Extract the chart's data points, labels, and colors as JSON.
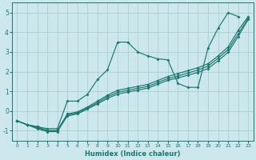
{
  "title": "",
  "xlabel": "Humidex (Indice chaleur)",
  "bg_color": "#cce8ec",
  "grid_color": "#aad0d4",
  "line_color": "#1a7870",
  "xlim": [
    -0.5,
    23.5
  ],
  "ylim": [
    -1.5,
    5.5
  ],
  "xticks": [
    0,
    1,
    2,
    3,
    4,
    5,
    6,
    7,
    8,
    9,
    10,
    11,
    12,
    13,
    14,
    15,
    16,
    17,
    18,
    19,
    20,
    21,
    22,
    23
  ],
  "yticks": [
    -1,
    0,
    1,
    2,
    3,
    4,
    5
  ],
  "line1_x": [
    0,
    1,
    2,
    3,
    4,
    5,
    6,
    7,
    8,
    9,
    10,
    11,
    12,
    13,
    14,
    15,
    16,
    17,
    18,
    19,
    20,
    21,
    22
  ],
  "line1_y": [
    -0.5,
    -0.7,
    -0.8,
    -0.9,
    -0.9,
    0.5,
    0.5,
    0.85,
    1.6,
    2.1,
    3.5,
    3.5,
    3.0,
    2.8,
    2.65,
    2.6,
    1.4,
    1.2,
    1.2,
    3.2,
    4.2,
    5.0,
    4.8
  ],
  "line2_x": [
    0,
    1,
    2,
    3,
    4,
    5,
    6,
    7,
    8,
    9,
    10,
    11,
    12,
    13,
    14,
    15,
    16,
    17,
    18,
    19,
    20,
    21,
    22,
    23
  ],
  "line2_y": [
    -0.5,
    -0.7,
    -0.8,
    -1.0,
    -1.0,
    -0.15,
    -0.05,
    0.2,
    0.5,
    0.8,
    1.05,
    1.15,
    1.25,
    1.35,
    1.55,
    1.75,
    1.9,
    2.05,
    2.2,
    2.4,
    2.8,
    3.25,
    4.1,
    4.8
  ],
  "line3_x": [
    0,
    1,
    2,
    3,
    4,
    5,
    6,
    7,
    8,
    9,
    10,
    11,
    12,
    13,
    14,
    15,
    16,
    17,
    18,
    19,
    20,
    21,
    22,
    23
  ],
  "line3_y": [
    -0.5,
    -0.7,
    -0.85,
    -1.0,
    -1.0,
    -0.2,
    -0.1,
    0.15,
    0.42,
    0.72,
    0.95,
    1.05,
    1.15,
    1.25,
    1.45,
    1.65,
    1.78,
    1.93,
    2.08,
    2.28,
    2.68,
    3.12,
    3.92,
    4.72
  ],
  "line4_x": [
    0,
    1,
    2,
    3,
    4,
    5,
    6,
    7,
    8,
    9,
    10,
    11,
    12,
    13,
    14,
    15,
    16,
    17,
    18,
    19,
    20,
    21,
    22,
    23
  ],
  "line4_y": [
    -0.5,
    -0.7,
    -0.9,
    -1.05,
    -1.05,
    -0.25,
    -0.15,
    0.1,
    0.36,
    0.64,
    0.86,
    0.96,
    1.06,
    1.16,
    1.36,
    1.56,
    1.68,
    1.82,
    1.96,
    2.16,
    2.55,
    2.98,
    3.78,
    4.65
  ]
}
